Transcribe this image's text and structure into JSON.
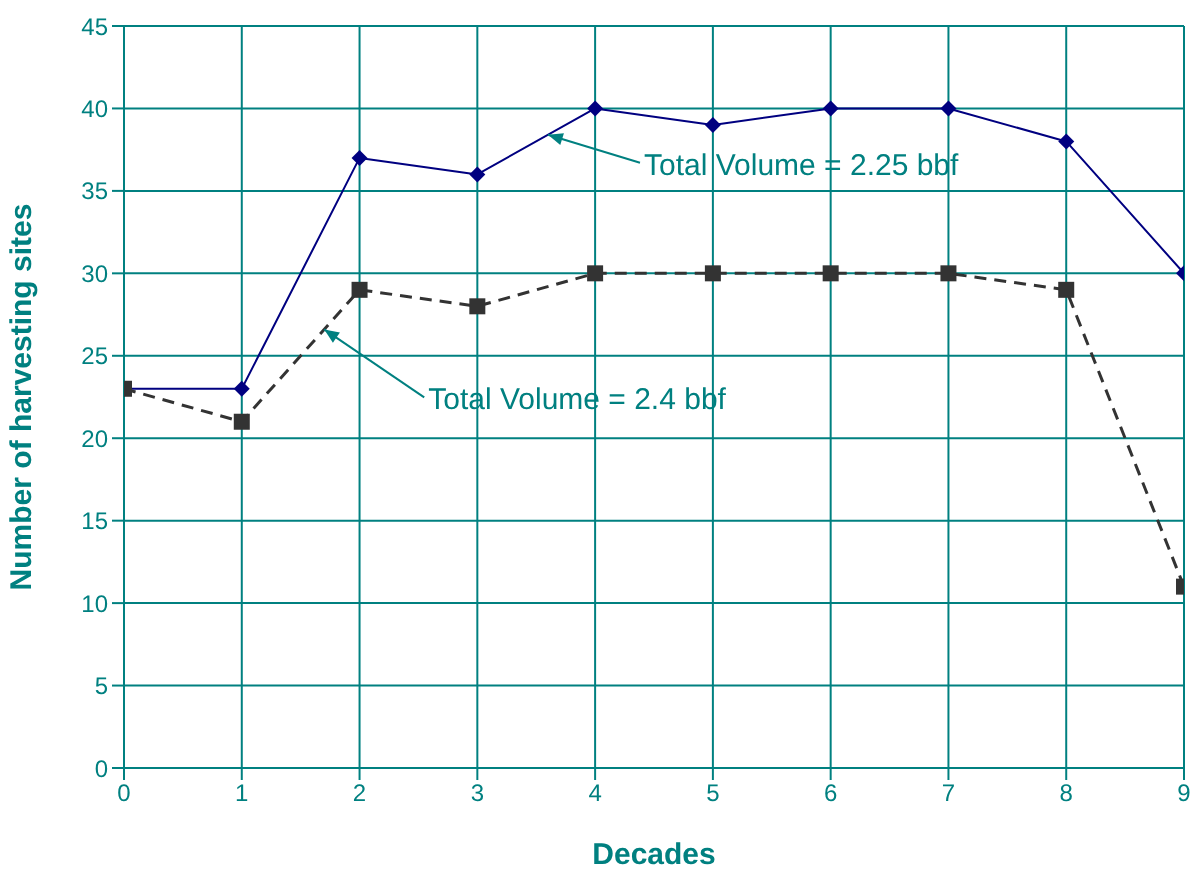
{
  "chart_data": {
    "type": "line",
    "xlabel": "Decades",
    "ylabel": "Number of harvesting sites",
    "x": [
      0,
      1,
      2,
      3,
      4,
      5,
      6,
      7,
      8,
      9
    ],
    "series": [
      {
        "color": "#000080",
        "values": [
          23,
          23,
          37,
          36,
          40,
          39,
          40,
          40,
          38,
          30
        ],
        "marker": "diamond",
        "line_style": "solid"
      },
      {
        "color": "#333333",
        "values": [
          23,
          21,
          29,
          28,
          30,
          30,
          30,
          30,
          29,
          11
        ],
        "marker": "square",
        "line_style": "dashed"
      }
    ],
    "xlim": [
      0,
      9
    ],
    "xticks": [
      0,
      1,
      2,
      3,
      4,
      5,
      6,
      7,
      8,
      9
    ],
    "ylim": [
      0,
      45
    ],
    "yticks": [
      0,
      5,
      10,
      15,
      20,
      25,
      30,
      35,
      40,
      45
    ],
    "grid": true,
    "annotations": [
      {
        "text": "Total Volume = 2.25 bbf",
        "x": 3.6,
        "y": 38.4
      },
      {
        "text": "Total Volume = 2.4 bbf",
        "x": 1.7,
        "y": 26.6
      }
    ]
  }
}
